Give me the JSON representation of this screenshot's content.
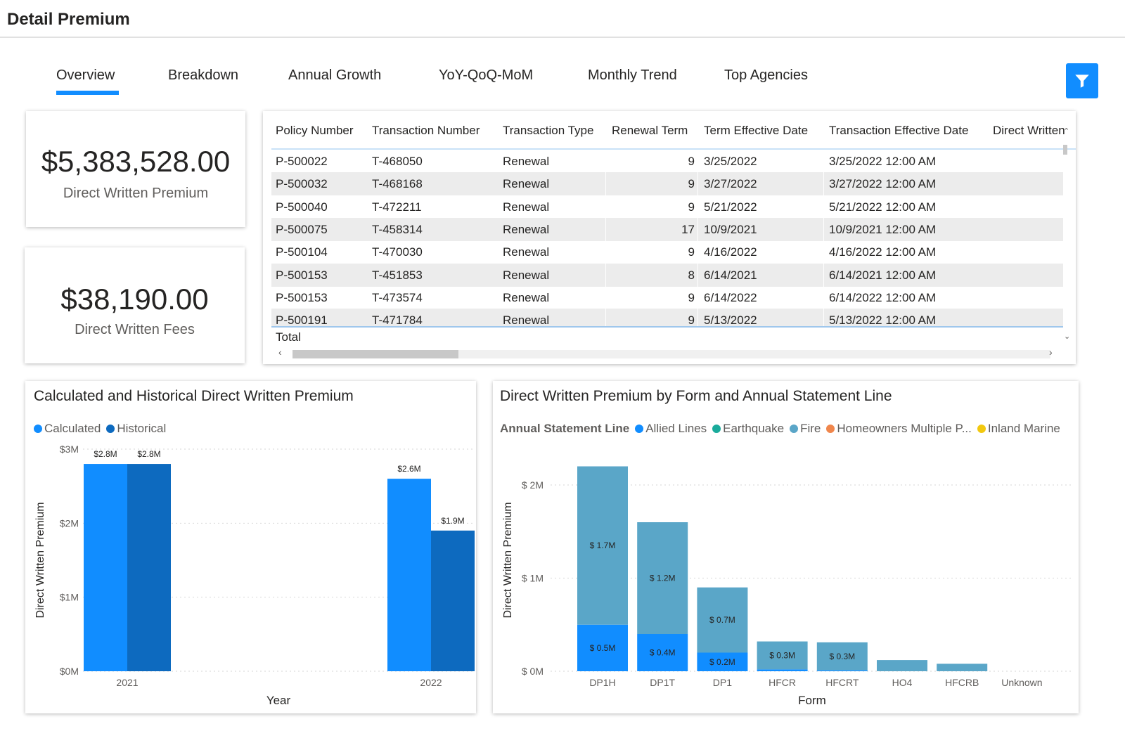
{
  "header": {
    "title": "Detail Premium"
  },
  "tabs": [
    {
      "label": "Overview",
      "active": true
    },
    {
      "label": "Breakdown"
    },
    {
      "label": "Annual Growth"
    },
    {
      "label": "YoY-QoQ-MoM"
    },
    {
      "label": "Monthly Trend"
    },
    {
      "label": "Top Agencies"
    }
  ],
  "filter": {
    "icon": "filter-icon",
    "color": "#118dff"
  },
  "kpis": {
    "premium": {
      "value": "$5,383,528.00",
      "label": "Direct Written Premium"
    },
    "fees": {
      "value": "$38,190.00",
      "label": "Direct Written Fees"
    }
  },
  "table": {
    "columns": [
      "Policy Number",
      "Transaction Number",
      "Transaction Type",
      "Renewal Term",
      "Term Effective Date",
      "Transaction Effective Date",
      "Direct Written"
    ],
    "rows": [
      [
        "P-500022",
        "T-468050",
        "Renewal",
        "9",
        "3/25/2022",
        "3/25/2022 12:00 AM"
      ],
      [
        "P-500032",
        "T-468168",
        "Renewal",
        "9",
        "3/27/2022",
        "3/27/2022 12:00 AM"
      ],
      [
        "P-500040",
        "T-472211",
        "Renewal",
        "9",
        "5/21/2022",
        "5/21/2022 12:00 AM"
      ],
      [
        "P-500075",
        "T-458314",
        "Renewal",
        "17",
        "10/9/2021",
        "10/9/2021 12:00 AM"
      ],
      [
        "P-500104",
        "T-470030",
        "Renewal",
        "9",
        "4/16/2022",
        "4/16/2022 12:00 AM"
      ],
      [
        "P-500153",
        "T-451853",
        "Renewal",
        "8",
        "6/14/2021",
        "6/14/2021 12:00 AM"
      ],
      [
        "P-500153",
        "T-473574",
        "Renewal",
        "9",
        "6/14/2022",
        "6/14/2022 12:00 AM"
      ],
      [
        "P-500191",
        "T-471784",
        "Renewal",
        "9",
        "5/13/2022",
        "5/13/2022 12:00 AM"
      ]
    ],
    "total_label": "Total"
  },
  "chart_data": [
    {
      "type": "bar",
      "title": "Calculated and Historical Direct Written Premium",
      "xlabel": "Year",
      "ylabel": "Direct Written Premium",
      "categories": [
        "2021",
        "2022"
      ],
      "series": [
        {
          "name": "Calculated",
          "color": "#118dff",
          "values": [
            2.8,
            2.6
          ],
          "labels": [
            "$2.8M",
            "$2.6M"
          ]
        },
        {
          "name": "Historical",
          "color": "#0d6abf",
          "values": [
            2.8,
            1.9
          ],
          "labels": [
            "$2.8M",
            "$1.9M"
          ]
        }
      ],
      "yticks": [
        "$0M",
        "$1M",
        "$2M",
        "$3M"
      ],
      "ylim": [
        0,
        3
      ],
      "grid": true,
      "legend": "top-left"
    },
    {
      "type": "bar",
      "stacked": true,
      "title": "Direct Written Premium by Form and Annual Statement Line",
      "xlabel": "Form",
      "ylabel": "Direct Written Premium",
      "legend_title": "Annual Statement Line",
      "categories": [
        "DP1H",
        "DP1T",
        "DP1",
        "HFCR",
        "HFCRT",
        "HO4",
        "HFCRB",
        "Unknown"
      ],
      "series": [
        {
          "name": "Allied Lines",
          "color": "#118dff",
          "values": [
            0.5,
            0.4,
            0.2,
            0.02,
            0.01,
            0,
            0,
            0
          ],
          "labels": [
            "$ 0.5M",
            "$ 0.4M",
            "$ 0.2M",
            "",
            "",
            "",
            "",
            ""
          ]
        },
        {
          "name": "Earthquake",
          "color": "#1aab9b",
          "values": [
            0,
            0,
            0,
            0,
            0,
            0,
            0,
            0
          ],
          "labels": [
            "",
            "",
            "",
            "",
            "",
            "",
            "",
            ""
          ]
        },
        {
          "name": "Fire",
          "color": "#5aa6c8",
          "values": [
            1.7,
            1.2,
            0.7,
            0.3,
            0.3,
            0.12,
            0.08,
            0
          ],
          "labels": [
            "$ 1.7M",
            "$ 1.2M",
            "$ 0.7M",
            "$ 0.3M",
            "$ 0.3M",
            "",
            "",
            ""
          ]
        },
        {
          "name": "Homeowners Multiple P...",
          "color": "#f0864c",
          "values": [
            0,
            0,
            0,
            0,
            0,
            0,
            0,
            0
          ],
          "labels": [
            "",
            "",
            "",
            "",
            "",
            "",
            "",
            ""
          ]
        },
        {
          "name": "Inland Marine",
          "color": "#f2c80f",
          "values": [
            0,
            0,
            0,
            0,
            0,
            0,
            0,
            0
          ],
          "labels": [
            "",
            "",
            "",
            "",
            "",
            "",
            "",
            ""
          ]
        }
      ],
      "yticks": [
        "$ 0M",
        "$ 1M",
        "$ 2M"
      ],
      "ylim": [
        0,
        2.4
      ],
      "grid": true,
      "legend": "top-left"
    }
  ]
}
